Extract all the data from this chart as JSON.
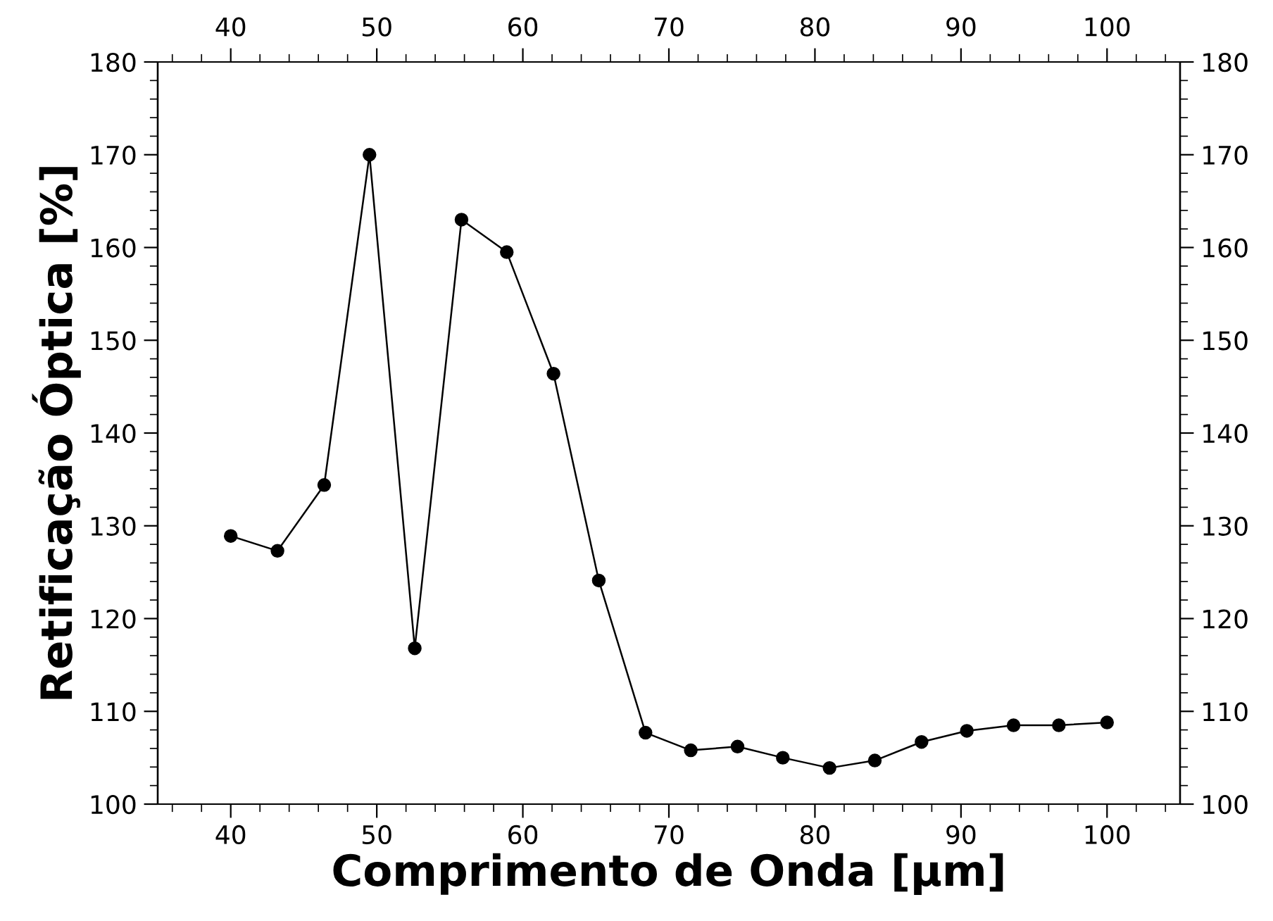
{
  "chart_data": {
    "type": "line",
    "xlabel": "Comprimento de Onda [µm]",
    "ylabel": "Retificação Óptica [%]",
    "x": [
      40,
      43.2,
      46.4,
      49.5,
      52.6,
      55.8,
      58.9,
      62.1,
      65.2,
      68.4,
      71.5,
      74.7,
      77.8,
      81,
      84.1,
      87.3,
      90.4,
      93.6,
      96.7,
      100
    ],
    "series": [
      {
        "color": "#000000",
        "values": [
          128.9,
          127.3,
          134.4,
          170,
          116.8,
          163,
          159.5,
          146.4,
          124.1,
          107.7,
          105.8,
          106.2,
          105,
          103.9,
          104.7,
          106.7,
          107.9,
          108.5,
          108.5,
          108.8
        ]
      }
    ],
    "xlim": [
      35,
      105
    ],
    "xticks": [
      40,
      50,
      60,
      70,
      80,
      90,
      100
    ],
    "x2lim": [
      35,
      105
    ],
    "x2ticks": [
      40,
      50,
      60,
      70,
      80,
      90,
      100
    ],
    "ylim": [
      100,
      180
    ],
    "yticks": [
      100,
      110,
      120,
      130,
      140,
      150,
      160,
      170,
      180
    ],
    "y2lim": [
      100,
      180
    ],
    "y2ticks": [
      100,
      110,
      120,
      130,
      140,
      150,
      160,
      170,
      180
    ],
    "marker": "circle",
    "line_style": "solid",
    "grid": false,
    "legend": false
  }
}
